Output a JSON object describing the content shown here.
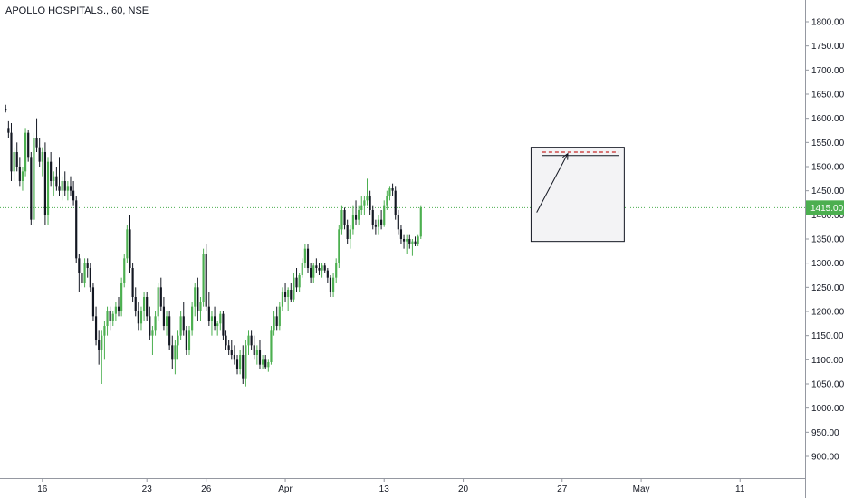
{
  "title": "APOLLO HOSPITALS., 60, NSE",
  "price_label": "1415.00",
  "colors": {
    "up": "#4caf50",
    "down": "#131722",
    "price_line": "#4caf50",
    "target_line": "#c62828",
    "box_fill": "#f3f3f5"
  },
  "chart_data": {
    "type": "candlestick",
    "ylim": [
      855,
      1845
    ],
    "y_ticks": [
      1800,
      1750,
      1700,
      1650,
      1600,
      1550,
      1500,
      1450,
      1400,
      1350,
      1300,
      1250,
      1200,
      1150,
      1100,
      1050,
      1000,
      950,
      900
    ],
    "y_tick_labels": [
      "1800.00",
      "1750.00",
      "1700.00",
      "1650.00",
      "1600.00",
      "1550.00",
      "1500.00",
      "1450.00",
      "1400.00",
      "1350.00",
      "1300.00",
      "1250.00",
      "1200.00",
      "1150.00",
      "1100.00",
      "1050.00",
      "1000.00",
      "950.00",
      "900.00"
    ],
    "x_ticks": [
      {
        "label": "16",
        "index": 13
      },
      {
        "label": "23",
        "index": 50
      },
      {
        "label": "26",
        "index": 71
      },
      {
        "label": "Apr",
        "index": 99
      },
      {
        "label": "13",
        "index": 134
      },
      {
        "label": "20",
        "index": 162
      },
      {
        "label": "27",
        "index": 197
      },
      {
        "label": "May",
        "index": 225
      },
      {
        "label": "11",
        "index": 260
      }
    ],
    "index_range": [
      -2,
      283
    ],
    "last_price": 1415,
    "candles": [
      [
        1620,
        1628,
        1612,
        1616
      ],
      [
        1580,
        1594,
        1560,
        1570
      ],
      [
        1570,
        1590,
        1470,
        1490
      ],
      [
        1490,
        1540,
        1470,
        1530
      ],
      [
        1530,
        1550,
        1490,
        1500
      ],
      [
        1500,
        1520,
        1460,
        1470
      ],
      [
        1470,
        1500,
        1450,
        1490
      ],
      [
        1490,
        1580,
        1480,
        1570
      ],
      [
        1570,
        1575,
        1510,
        1520
      ],
      [
        1520,
        1530,
        1380,
        1390
      ],
      [
        1390,
        1570,
        1380,
        1560
      ],
      [
        1560,
        1600,
        1530,
        1540
      ],
      [
        1540,
        1560,
        1500,
        1510
      ],
      [
        1510,
        1540,
        1480,
        1530
      ],
      [
        1530,
        1550,
        1380,
        1400
      ],
      [
        1400,
        1520,
        1380,
        1510
      ],
      [
        1510,
        1530,
        1460,
        1470
      ],
      [
        1470,
        1490,
        1440,
        1480
      ],
      [
        1480,
        1500,
        1450,
        1460
      ],
      [
        1460,
        1520,
        1440,
        1450
      ],
      [
        1450,
        1480,
        1430,
        1470
      ],
      [
        1470,
        1490,
        1440,
        1450
      ],
      [
        1450,
        1470,
        1430,
        1460
      ],
      [
        1460,
        1480,
        1440,
        1450
      ],
      [
        1450,
        1470,
        1420,
        1430
      ],
      [
        1430,
        1440,
        1300,
        1310
      ],
      [
        1310,
        1320,
        1240,
        1280
      ],
      [
        1280,
        1300,
        1250,
        1260
      ],
      [
        1260,
        1310,
        1250,
        1300
      ],
      [
        1300,
        1310,
        1270,
        1290
      ],
      [
        1290,
        1300,
        1240,
        1250
      ],
      [
        1250,
        1260,
        1180,
        1190
      ],
      [
        1190,
        1210,
        1130,
        1140
      ],
      [
        1140,
        1160,
        1090,
        1120
      ],
      [
        1120,
        1160,
        1050,
        1150
      ],
      [
        1150,
        1180,
        1100,
        1170
      ],
      [
        1170,
        1210,
        1150,
        1200
      ],
      [
        1200,
        1210,
        1160,
        1180
      ],
      [
        1180,
        1200,
        1170,
        1195
      ],
      [
        1195,
        1220,
        1180,
        1210
      ],
      [
        1210,
        1230,
        1190,
        1200
      ],
      [
        1200,
        1270,
        1190,
        1260
      ],
      [
        1260,
        1320,
        1250,
        1310
      ],
      [
        1310,
        1380,
        1300,
        1370
      ],
      [
        1370,
        1400,
        1280,
        1290
      ],
      [
        1290,
        1300,
        1220,
        1230
      ],
      [
        1230,
        1250,
        1190,
        1200
      ],
      [
        1200,
        1220,
        1160,
        1175
      ],
      [
        1175,
        1210,
        1160,
        1200
      ],
      [
        1200,
        1240,
        1180,
        1230
      ],
      [
        1230,
        1240,
        1180,
        1190
      ],
      [
        1190,
        1210,
        1140,
        1150
      ],
      [
        1150,
        1170,
        1110,
        1160
      ],
      [
        1160,
        1200,
        1150,
        1190
      ],
      [
        1190,
        1260,
        1180,
        1250
      ],
      [
        1250,
        1270,
        1200,
        1210
      ],
      [
        1210,
        1230,
        1160,
        1170
      ],
      [
        1170,
        1200,
        1150,
        1190
      ],
      [
        1190,
        1200,
        1120,
        1130
      ],
      [
        1130,
        1150,
        1080,
        1100
      ],
      [
        1100,
        1140,
        1070,
        1130
      ],
      [
        1130,
        1160,
        1100,
        1150
      ],
      [
        1150,
        1200,
        1140,
        1190
      ],
      [
        1190,
        1220,
        1150,
        1160
      ],
      [
        1160,
        1170,
        1110,
        1120
      ],
      [
        1120,
        1170,
        1110,
        1160
      ],
      [
        1160,
        1220,
        1150,
        1210
      ],
      [
        1210,
        1260,
        1190,
        1250
      ],
      [
        1250,
        1270,
        1180,
        1200
      ],
      [
        1200,
        1230,
        1180,
        1220
      ],
      [
        1220,
        1330,
        1210,
        1320
      ],
      [
        1320,
        1340,
        1200,
        1210
      ],
      [
        1210,
        1240,
        1170,
        1180
      ],
      [
        1180,
        1200,
        1150,
        1190
      ],
      [
        1190,
        1210,
        1160,
        1170
      ],
      [
        1170,
        1180,
        1150,
        1175
      ],
      [
        1175,
        1200,
        1160,
        1195
      ],
      [
        1195,
        1200,
        1140,
        1150
      ],
      [
        1150,
        1160,
        1120,
        1130
      ],
      [
        1130,
        1140,
        1110,
        1120
      ],
      [
        1120,
        1140,
        1100,
        1110
      ],
      [
        1110,
        1130,
        1090,
        1100
      ],
      [
        1100,
        1110,
        1070,
        1080
      ],
      [
        1080,
        1120,
        1070,
        1110
      ],
      [
        1110,
        1130,
        1050,
        1060
      ],
      [
        1060,
        1140,
        1045,
        1130
      ],
      [
        1130,
        1160,
        1110,
        1150
      ],
      [
        1150,
        1160,
        1120,
        1130
      ],
      [
        1130,
        1150,
        1100,
        1110
      ],
      [
        1110,
        1130,
        1090,
        1120
      ],
      [
        1120,
        1140,
        1080,
        1090
      ],
      [
        1090,
        1110,
        1080,
        1100
      ],
      [
        1100,
        1110,
        1080,
        1085
      ],
      [
        1085,
        1100,
        1075,
        1095
      ],
      [
        1095,
        1170,
        1090,
        1160
      ],
      [
        1160,
        1200,
        1150,
        1190
      ],
      [
        1190,
        1210,
        1160,
        1170
      ],
      [
        1170,
        1220,
        1160,
        1210
      ],
      [
        1210,
        1250,
        1200,
        1240
      ],
      [
        1240,
        1260,
        1220,
        1230
      ],
      [
        1230,
        1250,
        1200,
        1245
      ],
      [
        1245,
        1260,
        1220,
        1225
      ],
      [
        1225,
        1280,
        1220,
        1270
      ],
      [
        1270,
        1290,
        1240,
        1250
      ],
      [
        1250,
        1280,
        1240,
        1275
      ],
      [
        1275,
        1310,
        1270,
        1300
      ],
      [
        1300,
        1340,
        1290,
        1330
      ],
      [
        1330,
        1340,
        1280,
        1290
      ],
      [
        1290,
        1300,
        1260,
        1270
      ],
      [
        1270,
        1300,
        1260,
        1295
      ],
      [
        1295,
        1310,
        1280,
        1290
      ],
      [
        1290,
        1300,
        1275,
        1285
      ],
      [
        1285,
        1300,
        1270,
        1295
      ],
      [
        1295,
        1300,
        1280,
        1285
      ],
      [
        1285,
        1290,
        1260,
        1270
      ],
      [
        1270,
        1275,
        1230,
        1240
      ],
      [
        1240,
        1280,
        1230,
        1270
      ],
      [
        1270,
        1310,
        1260,
        1300
      ],
      [
        1300,
        1380,
        1290,
        1370
      ],
      [
        1370,
        1420,
        1360,
        1410
      ],
      [
        1410,
        1415,
        1370,
        1380
      ],
      [
        1380,
        1390,
        1340,
        1350
      ],
      [
        1350,
        1380,
        1330,
        1370
      ],
      [
        1370,
        1420,
        1360,
        1400
      ],
      [
        1400,
        1430,
        1380,
        1390
      ],
      [
        1390,
        1420,
        1380,
        1410
      ],
      [
        1410,
        1440,
        1400,
        1420
      ],
      [
        1420,
        1440,
        1400,
        1430
      ],
      [
        1430,
        1475,
        1420,
        1440
      ],
      [
        1440,
        1450,
        1400,
        1410
      ],
      [
        1410,
        1420,
        1370,
        1380
      ],
      [
        1380,
        1390,
        1360,
        1375
      ],
      [
        1375,
        1400,
        1360,
        1390
      ],
      [
        1390,
        1410,
        1370,
        1380
      ],
      [
        1380,
        1430,
        1375,
        1420
      ],
      [
        1420,
        1450,
        1410,
        1440
      ],
      [
        1440,
        1460,
        1430,
        1455
      ],
      [
        1455,
        1465,
        1440,
        1450
      ],
      [
        1450,
        1460,
        1390,
        1400
      ],
      [
        1400,
        1410,
        1360,
        1370
      ],
      [
        1370,
        1380,
        1340,
        1350
      ],
      [
        1350,
        1360,
        1330,
        1345
      ],
      [
        1345,
        1360,
        1320,
        1350
      ],
      [
        1350,
        1360,
        1330,
        1340
      ],
      [
        1340,
        1350,
        1315,
        1345
      ],
      [
        1345,
        1355,
        1335,
        1340
      ],
      [
        1340,
        1360,
        1335,
        1355
      ],
      [
        1355,
        1420,
        1350,
        1415
      ]
    ],
    "projection_box": {
      "index_start": 186,
      "index_end": 219,
      "price_top": 1540,
      "price_bottom": 1345
    },
    "target_band": {
      "index_start": 190,
      "index_end": 217,
      "price_a": 1530,
      "price_b": 1523
    },
    "arrow": {
      "from_index": 188,
      "from_price": 1405,
      "to_index": 199,
      "to_price": 1527
    }
  }
}
